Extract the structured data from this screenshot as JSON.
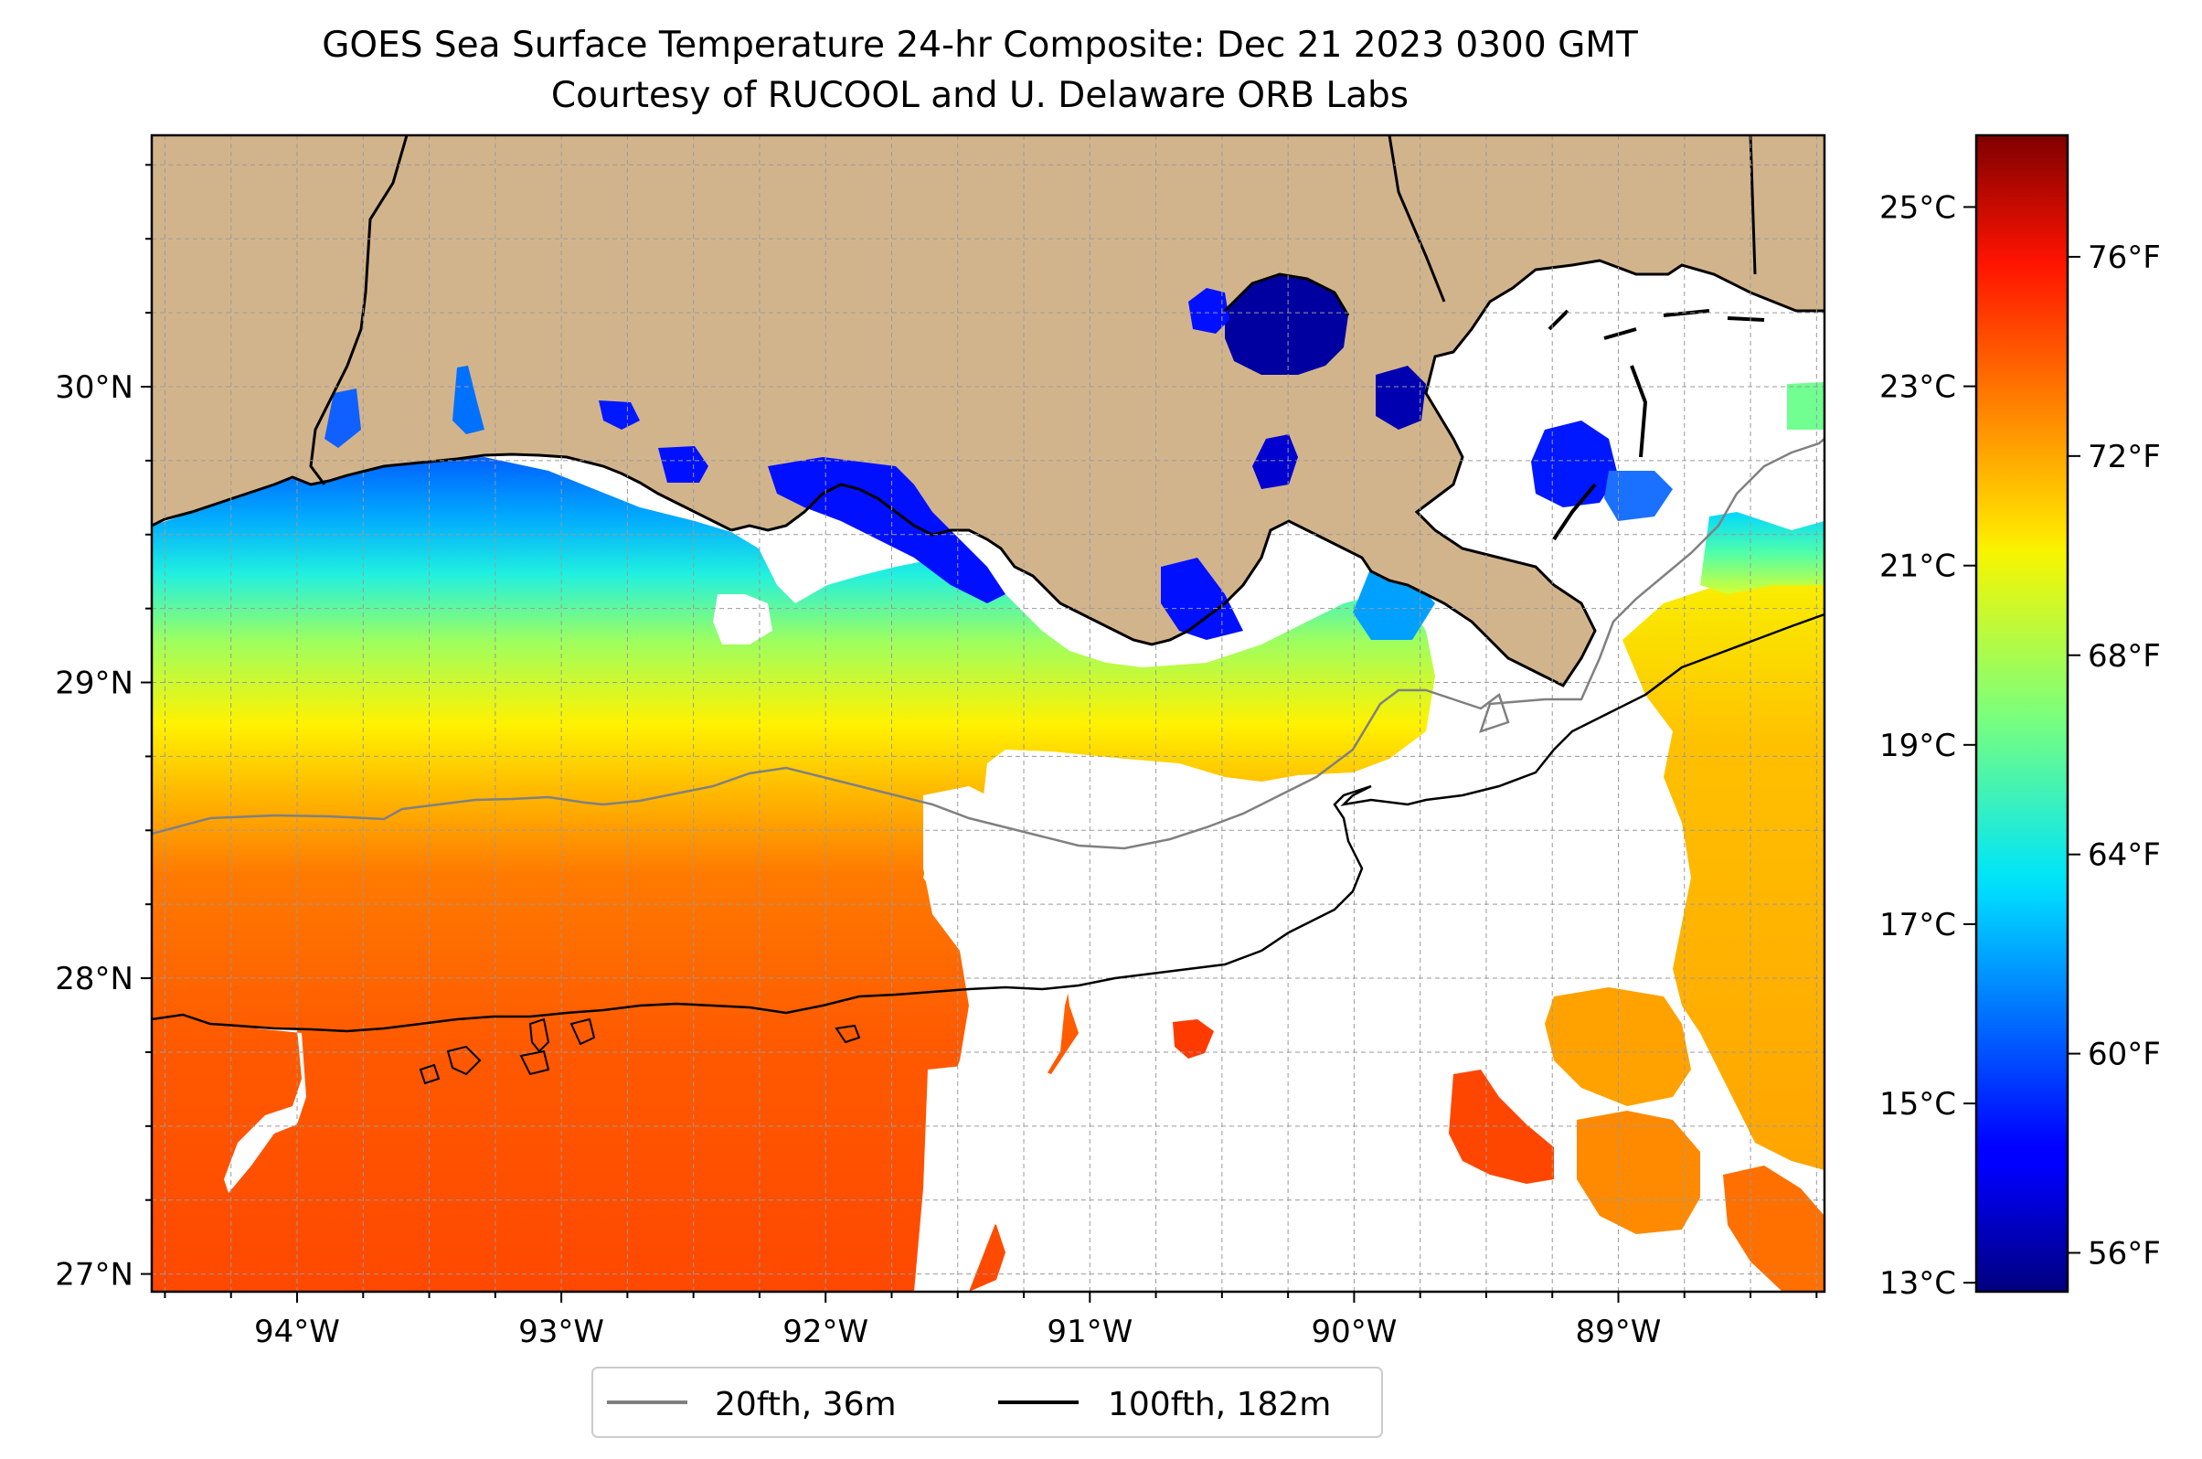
{
  "title": {
    "line1": "GOES Sea Surface Temperature 24-hr Composite: Dec 21 2023 0300 GMT",
    "line2": "Courtesy of RUCOOL and U. Delaware ORB Labs"
  },
  "map": {
    "lon_range": [
      -94.55,
      -88.22
    ],
    "lat_range": [
      26.94,
      30.85
    ],
    "lon_ticks": [
      {
        "value": -94,
        "label": "94°W"
      },
      {
        "value": -93,
        "label": "93°W"
      },
      {
        "value": -92,
        "label": "92°W"
      },
      {
        "value": -91,
        "label": "91°W"
      },
      {
        "value": -90,
        "label": "90°W"
      },
      {
        "value": -89,
        "label": "89°W"
      }
    ],
    "lat_ticks": [
      {
        "value": 27,
        "label": "27°N"
      },
      {
        "value": 28,
        "label": "28°N"
      },
      {
        "value": 29,
        "label": "29°N"
      },
      {
        "value": 30,
        "label": "30°N"
      }
    ],
    "gridline_step_deg": 0.25,
    "grid": true,
    "land_color": "#d2b48c",
    "no_data_color": "#ffffff"
  },
  "colorbar": {
    "colormap": "jet",
    "celsius_range": [
      12.9,
      25.8
    ],
    "celsius_ticks": [
      {
        "value": 13,
        "label": "13°C"
      },
      {
        "value": 15,
        "label": "15°C"
      },
      {
        "value": 17,
        "label": "17°C"
      },
      {
        "value": 19,
        "label": "19°C"
      },
      {
        "value": 21,
        "label": "21°C"
      },
      {
        "value": 23,
        "label": "23°C"
      },
      {
        "value": 25,
        "label": "25°C"
      }
    ],
    "fahrenheit_ticks": [
      {
        "value": 56,
        "label": "56°F"
      },
      {
        "value": 60,
        "label": "60°F"
      },
      {
        "value": 64,
        "label": "64°F"
      },
      {
        "value": 68,
        "label": "68°F"
      },
      {
        "value": 72,
        "label": "72°F"
      },
      {
        "value": 76,
        "label": "76°F"
      }
    ]
  },
  "legend": {
    "position": "below-center",
    "entries": [
      {
        "label": "20fth, 36m",
        "color": "#808080"
      },
      {
        "label": "100fth, 182m",
        "color": "#000000"
      }
    ]
  }
}
